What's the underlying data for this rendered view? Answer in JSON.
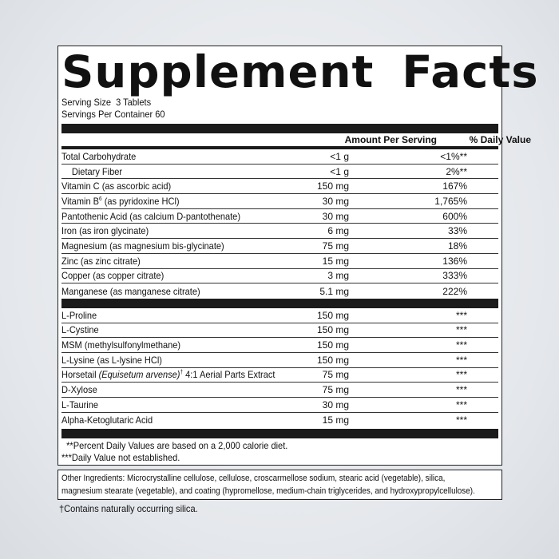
{
  "title": "Supplement Facts",
  "serving_size": "Serving Size  3 Tablets",
  "servings_per_container": "Servings Per Container 60",
  "headers": {
    "amount": "Amount Per Serving",
    "dv": "% Daily Value"
  },
  "section1": [
    {
      "name": "Total Carbohydrate",
      "amount": "<1 g",
      "dv": "<1%**"
    },
    {
      "name": "Dietary Fiber",
      "amount": "<1 g",
      "dv": "2%**"
    },
    {
      "name": "Vitamin C (as ascorbic acid)",
      "amount": "150 mg",
      "dv": "167%"
    },
    {
      "name": "Vitamin B",
      "sup": "6",
      "name_rest": " (as pyridoxine HCl)",
      "amount": "30 mg",
      "dv": "1,765%"
    },
    {
      "name": "Pantothenic Acid (as calcium D-pantothenate)",
      "amount": "30 mg",
      "dv": "600%"
    },
    {
      "name": "Iron (as iron glycinate)",
      "amount": "6 mg",
      "dv": "33%"
    },
    {
      "name": "Magnesium (as magnesium bis-glycinate)",
      "amount": "75 mg",
      "dv": "18%"
    },
    {
      "name": "Zinc (as zinc citrate)",
      "amount": "15 mg",
      "dv": "136%"
    },
    {
      "name": "Copper (as copper citrate)",
      "amount": "3 mg",
      "dv": "333%"
    },
    {
      "name": "Manganese (as manganese citrate)",
      "amount": "5.1 mg",
      "dv": "222%"
    }
  ],
  "section2": [
    {
      "name": "L-Proline",
      "amount": "150 mg",
      "dv": "***"
    },
    {
      "name": "L-Cystine",
      "amount": "150 mg",
      "dv": "***"
    },
    {
      "name": "MSM (methylsulfonylmethane)",
      "amount": "150 mg",
      "dv": "***"
    },
    {
      "name": "L-Lysine (as L-lysine HCl)",
      "amount": "150 mg",
      "dv": "***"
    },
    {
      "name": "Horsetail ",
      "italic": "(Equisetum arvense)",
      "sup": "†",
      "name_rest": " 4:1 Aerial Parts Extract",
      "amount": "75 mg",
      "dv": "***"
    },
    {
      "name": "D-Xylose",
      "amount": "75 mg",
      "dv": "***"
    },
    {
      "name": "L-Taurine",
      "amount": "30 mg",
      "dv": "***"
    },
    {
      "name": "Alpha-Ketoglutaric Acid",
      "amount": "15 mg",
      "dv": "***"
    }
  ],
  "footnotes": [
    "  **Percent Daily Values are based on a 2,000 calorie diet.",
    "***Daily Value not established."
  ],
  "other_ingredients": [
    "Other Ingredients: Microcrystalline cellulose, cellulose, croscarmellose sodium, stearic acid (vegetable), silica,",
    "magnesium stearate (vegetable), and coating (hypromellose, medium-chain triglycerides, and hydroxypropylcellulose)."
  ],
  "dagger_note": "†Contains naturally occurring silica."
}
